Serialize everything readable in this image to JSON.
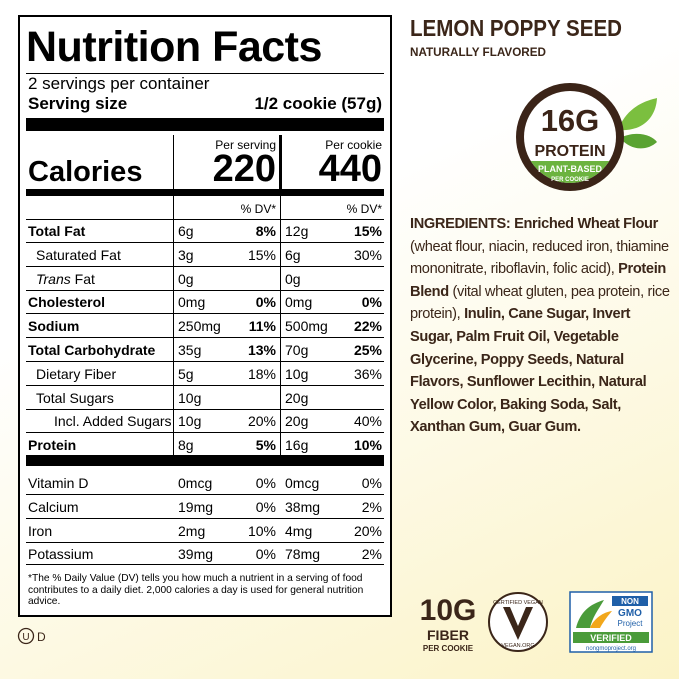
{
  "label": {
    "title": "Nutrition Facts",
    "servings": "2 servings per container",
    "serving_size_label": "Serving size",
    "serving_size": "1/2 cookie (57g)",
    "columns": [
      "Per serving",
      "Per cookie"
    ],
    "calories_label": "Calories",
    "calories": [
      "220",
      "440"
    ],
    "dv_header": [
      "% DV*",
      "% DV*"
    ],
    "rows": [
      {
        "name": "Total Fat",
        "serving": "6g",
        "serving_dv": "8%",
        "cookie": "12g",
        "cookie_dv": "15%"
      },
      {
        "name": "Saturated Fat",
        "serving": "3g",
        "serving_dv": "15%",
        "cookie": "6g",
        "cookie_dv": "30%"
      },
      {
        "name_italic": "Trans",
        "name": "Fat",
        "serving": "0g",
        "cookie": "0g"
      },
      {
        "name": "Cholesterol",
        "serving": "0mg",
        "serving_dv": "0%",
        "cookie": "0mg",
        "cookie_dv": "0%"
      },
      {
        "name": "Sodium",
        "serving": "250mg",
        "serving_dv": "11%",
        "cookie": "500mg",
        "cookie_dv": "22%"
      },
      {
        "name": "Total Carbohydrate",
        "serving": "35g",
        "serving_dv": "13%",
        "cookie": "70g",
        "cookie_dv": "25%"
      },
      {
        "name": "Dietary Fiber",
        "serving": "5g",
        "serving_dv": "18%",
        "cookie": "10g",
        "cookie_dv": "36%"
      },
      {
        "name": "Total Sugars",
        "serving": "10g",
        "cookie": "20g"
      },
      {
        "name": "Incl. Added Sugars",
        "serving": "10g",
        "serving_dv": "20%",
        "cookie": "20g",
        "cookie_dv": "40%"
      },
      {
        "name": "Protein",
        "serving": "8g",
        "serving_dv": "5%",
        "cookie": "16g",
        "cookie_dv": "10%"
      }
    ],
    "vitamins": [
      {
        "name": "Vitamin D",
        "serving": "0mcg",
        "serving_dv": "0%",
        "cookie": "0mcg",
        "cookie_dv": "0%"
      },
      {
        "name": "Calcium",
        "serving": "19mg",
        "serving_dv": "0%",
        "cookie": "38mg",
        "cookie_dv": "2%"
      },
      {
        "name": "Iron",
        "serving": "2mg",
        "serving_dv": "10%",
        "cookie": "4mg",
        "cookie_dv": "20%"
      },
      {
        "name": "Potassium",
        "serving": "39mg",
        "serving_dv": "0%",
        "cookie": "78mg",
        "cookie_dv": "2%"
      }
    ],
    "footnote": "*The % Daily Value (DV) tells you how much a nutrient in a serving of food contributes to a daily diet. 2,000 calories a day is used for general nutrition advice."
  },
  "kosher": [
    "U",
    "D"
  ],
  "product": {
    "name": "LEMON POPPY SEED",
    "subtitle": "NATURALLY FLAVORED"
  },
  "protein_badge": {
    "amount": "16G",
    "label": "PROTEIN",
    "band": [
      "PLANT-BASED",
      "PER COOKIE"
    ]
  },
  "ingredients": [
    {
      "text": "INGREDIENTS: Enriched Wheat Flour",
      "bold": true
    },
    {
      "text": " (wheat flour, niacin, reduced iron, thiamine mononitrate, riboflavin, folic acid), ",
      "bold": false
    },
    {
      "text": "Protein Blend",
      "bold": true
    },
    {
      "text": " (vital wheat gluten, pea protein, rice protein), ",
      "bold": false
    },
    {
      "text": "Inulin, Cane Sugar, Invert Sugar, Palm Fruit Oil, Vegetable Glycerine, Poppy Seeds, Natural Flavors, Sunflower Lecithin, Natural Yellow Color, Baking Soda, Salt, Xanthan Gum, Guar Gum.",
      "bold": true
    }
  ],
  "fiber_badge": {
    "amount": "10G",
    "label": "FIBER",
    "sub": "PER COOKIE"
  },
  "vegan_logo": {
    "top": "CERTIFIED VEGAN",
    "bottom": "VEGAN.ORG"
  },
  "nongmo_logo": {
    "lines": [
      "NON",
      "GMO",
      "Project"
    ],
    "verified": "VERIFIED",
    "url": "nongmoproject.org"
  }
}
